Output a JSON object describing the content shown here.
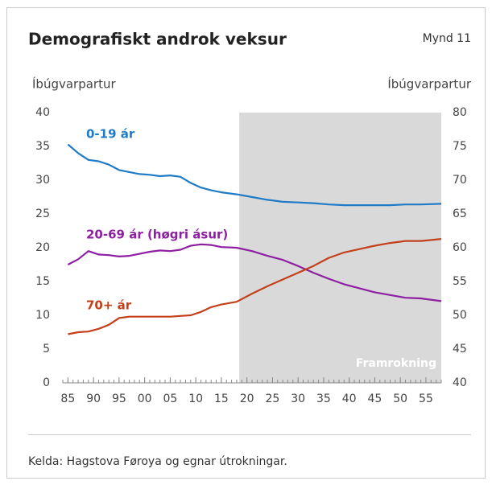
{
  "chart_data": {
    "type": "line",
    "title": "Demografiskt androk veksur",
    "figure_label": "Mynd 11",
    "y_label": "Íbúgvarpartur",
    "y2_label": "Íbúgvarpartur",
    "annotation": "Framrokning",
    "projection_start": 2018.5,
    "source": "Kelda:  Hagstova Føroya og egnar útrokningar.",
    "xlim": [
      1984,
      2058
    ],
    "xticks": [
      {
        "value": 1985,
        "label": "85"
      },
      {
        "value": 1990,
        "label": "90"
      },
      {
        "value": 1995,
        "label": "95"
      },
      {
        "value": 2000,
        "label": "00"
      },
      {
        "value": 2005,
        "label": "05"
      },
      {
        "value": 2010,
        "label": "10"
      },
      {
        "value": 2015,
        "label": "15"
      },
      {
        "value": 2020,
        "label": "20"
      },
      {
        "value": 2025,
        "label": "25"
      },
      {
        "value": 2030,
        "label": "30"
      },
      {
        "value": 2035,
        "label": "35"
      },
      {
        "value": 2040,
        "label": "40"
      },
      {
        "value": 2045,
        "label": "45"
      },
      {
        "value": 2050,
        "label": "50"
      },
      {
        "value": 2055,
        "label": "55"
      }
    ],
    "ylim": [
      0,
      40
    ],
    "yticks": [
      0,
      5,
      10,
      15,
      20,
      25,
      30,
      35,
      40
    ],
    "y2lim": [
      40,
      80
    ],
    "y2ticks": [
      40,
      45,
      50,
      55,
      60,
      65,
      70,
      75,
      80
    ],
    "x": [
      1985,
      1987,
      1989,
      1991,
      1993,
      1995,
      1997,
      1999,
      2001,
      2003,
      2005,
      2007,
      2009,
      2011,
      2013,
      2015,
      2018,
      2021,
      2024,
      2027,
      2030,
      2033,
      2036,
      2039,
      2042,
      2045,
      2048,
      2051,
      2054,
      2058
    ],
    "series": [
      {
        "name": "0-19 ár",
        "color": "#1f7bc6",
        "values": [
          35.3,
          34,
          33,
          32.8,
          32.3,
          31.5,
          31.2,
          30.9,
          30.8,
          30.6,
          30.7,
          30.5,
          29.6,
          28.9,
          28.5,
          28.2,
          27.9,
          27.5,
          27.1,
          26.8,
          26.7,
          26.6,
          26.4,
          26.3,
          26.3,
          26.3,
          26.3,
          26.4,
          26.4,
          26.5
        ]
      },
      {
        "name": "20-69 ár (høgri ásur)",
        "color": "#8e1fa3",
        "axis": "y2",
        "values": [
          57.5,
          58.3,
          59.5,
          59.0,
          58.9,
          58.7,
          58.8,
          59.1,
          59.4,
          59.6,
          59.5,
          59.7,
          60.3,
          60.5,
          60.4,
          60.1,
          60.0,
          59.5,
          58.8,
          58.2,
          57.3,
          56.3,
          55.4,
          54.6,
          54.0,
          53.4,
          53.0,
          52.6,
          52.5,
          52.1
        ]
      },
      {
        "name": "70+ ár",
        "color": "#c4401b",
        "values": [
          7.2,
          7.5,
          7.6,
          8.0,
          8.6,
          9.6,
          9.8,
          9.8,
          9.8,
          9.8,
          9.8,
          9.9,
          10.0,
          10.5,
          11.2,
          11.6,
          12.0,
          13.2,
          14.3,
          15.3,
          16.3,
          17.3,
          18.5,
          19.3,
          19.8,
          20.3,
          20.7,
          21.0,
          21.0,
          21.3
        ]
      }
    ]
  }
}
